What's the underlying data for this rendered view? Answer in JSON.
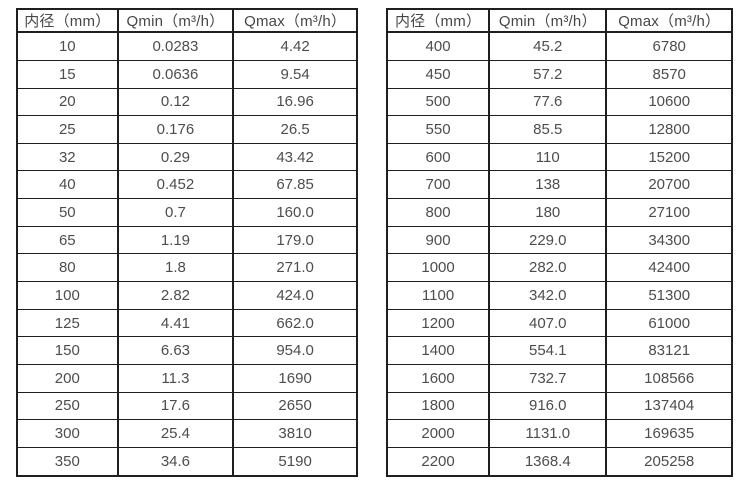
{
  "page": {
    "description_colors": {
      "background": "#ffffff",
      "border": "#1f1f1f",
      "text": "#4d4d4d"
    }
  },
  "chart_data": [
    {
      "type": "table",
      "title": "",
      "columns": [
        "内径（mm）",
        "Qmin（m³/h）",
        "Qmax（m³/h）"
      ],
      "rows": [
        [
          "10",
          "0.0283",
          "4.42"
        ],
        [
          "15",
          "0.0636",
          "9.54"
        ],
        [
          "20",
          "0.12",
          "16.96"
        ],
        [
          "25",
          "0.176",
          "26.5"
        ],
        [
          "32",
          "0.29",
          "43.42"
        ],
        [
          "40",
          "0.452",
          "67.85"
        ],
        [
          "50",
          "0.7",
          "160.0"
        ],
        [
          "65",
          "1.19",
          "179.0"
        ],
        [
          "80",
          "1.8",
          "271.0"
        ],
        [
          "100",
          "2.82",
          "424.0"
        ],
        [
          "125",
          "4.41",
          "662.0"
        ],
        [
          "150",
          "6.63",
          "954.0"
        ],
        [
          "200",
          "11.3",
          "1690"
        ],
        [
          "250",
          "17.6",
          "2650"
        ],
        [
          "300",
          "25.4",
          "3810"
        ],
        [
          "350",
          "34.6",
          "5190"
        ]
      ]
    },
    {
      "type": "table",
      "title": "",
      "columns": [
        "内径（mm）",
        "Qmin（m³/h）",
        "Qmax（m³/h）"
      ],
      "rows": [
        [
          "400",
          "45.2",
          "6780"
        ],
        [
          "450",
          "57.2",
          "8570"
        ],
        [
          "500",
          "77.6",
          "10600"
        ],
        [
          "550",
          "85.5",
          "12800"
        ],
        [
          "600",
          "110",
          "15200"
        ],
        [
          "700",
          "138",
          "20700"
        ],
        [
          "800",
          "180",
          "27100"
        ],
        [
          "900",
          "229.0",
          "34300"
        ],
        [
          "1000",
          "282.0",
          "42400"
        ],
        [
          "1100",
          "342.0",
          "51300"
        ],
        [
          "1200",
          "407.0",
          "61000"
        ],
        [
          "1400",
          "554.1",
          "83121"
        ],
        [
          "1600",
          "732.7",
          "108566"
        ],
        [
          "1800",
          "916.0",
          "137404"
        ],
        [
          "2000",
          "1131.0",
          "169635"
        ],
        [
          "2200",
          "1368.4",
          "205258"
        ]
      ]
    }
  ]
}
